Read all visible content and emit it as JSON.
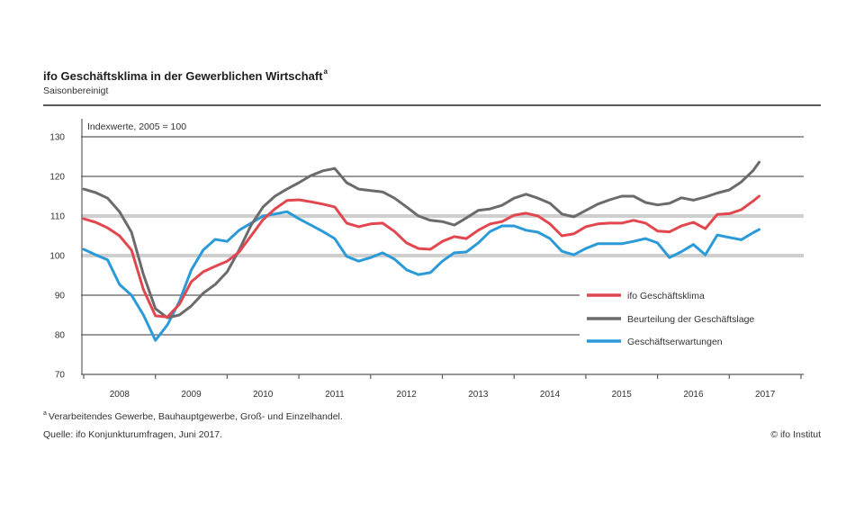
{
  "notes": {
    "marker": "a",
    "footnote": "Verarbeitendes Gewerbe, Bauhauptgewerbe, Groß- und Einzelhandel.",
    "source": "Quelle: ifo Konjunkturumfragen, Juni 2017.",
    "copyright": "© ifo Institut"
  },
  "chart_data": {
    "type": "line",
    "title": "ifo Geschäftsklima in der Gewerblichen Wirtschaft",
    "title_marker": "a",
    "subtitle": "Saisonbereinigt",
    "ylabel": "Indexwerte, 2005 = 100",
    "xlabel": "",
    "xlim": [
      "2008-01",
      "2018-01"
    ],
    "ylim": [
      70,
      130
    ],
    "yticks": [
      130,
      120,
      110,
      100,
      90,
      80,
      70
    ],
    "xtick_labels": [
      "2008",
      "2009",
      "2010",
      "2011",
      "2012",
      "2013",
      "2014",
      "2015",
      "2016",
      "2017"
    ],
    "grid": true,
    "legend": "lower-right",
    "x": [
      "2008-01",
      "2008-03",
      "2008-05",
      "2008-07",
      "2008-09",
      "2008-11",
      "2009-01",
      "2009-03",
      "2009-05",
      "2009-07",
      "2009-09",
      "2009-11",
      "2010-01",
      "2010-03",
      "2010-05",
      "2010-07",
      "2010-09",
      "2010-11",
      "2011-01",
      "2011-03",
      "2011-05",
      "2011-07",
      "2011-09",
      "2011-11",
      "2012-01",
      "2012-03",
      "2012-05",
      "2012-07",
      "2012-09",
      "2012-11",
      "2013-01",
      "2013-03",
      "2013-05",
      "2013-07",
      "2013-09",
      "2013-11",
      "2014-01",
      "2014-03",
      "2014-05",
      "2014-07",
      "2014-09",
      "2014-11",
      "2015-01",
      "2015-03",
      "2015-05",
      "2015-07",
      "2015-09",
      "2015-11",
      "2016-01",
      "2016-03",
      "2016-05",
      "2016-07",
      "2016-09",
      "2016-11",
      "2017-01",
      "2017-03",
      "2017-05",
      "2017-06"
    ],
    "series": [
      {
        "name": "ifo Geschäftsklima",
        "color": "#e2474f",
        "values": [
          109.3,
          108.4,
          107.0,
          105.0,
          101.4,
          91.4,
          84.8,
          84.5,
          87.7,
          93.4,
          95.9,
          97.3,
          98.6,
          100.9,
          105.0,
          109.1,
          111.8,
          113.9,
          114.1,
          113.6,
          113.0,
          112.3,
          108.2,
          107.3,
          108.0,
          108.2,
          106.1,
          103.2,
          101.8,
          101.6,
          103.6,
          104.8,
          104.3,
          106.4,
          108.0,
          108.6,
          110.2,
          110.7,
          110.0,
          108.0,
          105.0,
          105.5,
          107.3,
          108.0,
          108.2,
          108.2,
          108.9,
          108.2,
          106.2,
          106.0,
          107.5,
          108.4,
          106.8,
          110.4,
          110.6,
          111.6,
          113.8,
          115.0
        ]
      },
      {
        "name": "Beurteilung der Geschäftslage",
        "color": "#6b6b6b",
        "values": [
          116.8,
          115.9,
          114.5,
          111.1,
          105.9,
          95.2,
          86.6,
          84.3,
          85.0,
          87.3,
          90.5,
          92.7,
          95.9,
          101.4,
          107.7,
          112.3,
          115.0,
          116.8,
          118.4,
          120.2,
          121.4,
          122.0,
          118.4,
          116.8,
          116.4,
          116.1,
          114.5,
          112.3,
          110.0,
          108.9,
          108.6,
          107.7,
          109.5,
          111.4,
          111.8,
          112.7,
          114.5,
          115.5,
          114.5,
          113.2,
          110.5,
          109.8,
          111.4,
          113.0,
          114.1,
          115.0,
          115.0,
          113.4,
          112.8,
          113.2,
          114.6,
          114.0,
          114.8,
          115.8,
          116.6,
          118.6,
          121.5,
          123.6
        ]
      },
      {
        "name": "Geschäftserwartungen",
        "color": "#2b9ad8",
        "values": [
          101.6,
          100.2,
          98.9,
          92.7,
          90.0,
          85.0,
          78.6,
          82.5,
          88.4,
          96.4,
          101.4,
          104.1,
          103.6,
          106.4,
          108.2,
          110.0,
          110.5,
          111.1,
          109.3,
          107.7,
          106.1,
          104.3,
          99.8,
          98.6,
          99.5,
          100.7,
          99.1,
          96.4,
          95.2,
          95.7,
          98.6,
          100.7,
          100.9,
          103.2,
          106.1,
          107.5,
          107.5,
          106.4,
          105.9,
          104.3,
          101.1,
          100.2,
          101.8,
          103.0,
          103.0,
          103.0,
          103.6,
          104.3,
          103.2,
          99.5,
          101.0,
          102.8,
          100.2,
          105.2,
          104.6,
          104.0,
          105.8,
          106.6
        ]
      }
    ]
  }
}
